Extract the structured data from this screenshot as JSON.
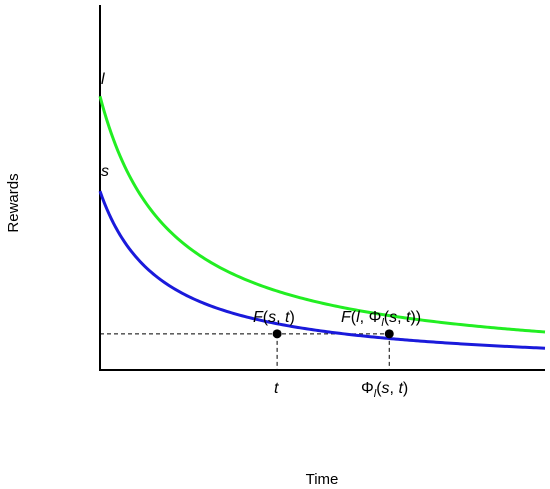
{
  "chart_data": {
    "type": "line",
    "title": "",
    "xlabel": "Time",
    "ylabel": "Rewards",
    "xlim": [
      0,
      10
    ],
    "ylim": [
      0,
      10
    ],
    "grid": false,
    "legend": "none",
    "series": [
      {
        "name": "l",
        "color": "#22ee22",
        "A": 7.5,
        "k": 0.62,
        "T": 10
      },
      {
        "name": "s",
        "color": "#1a1adb",
        "A": 4.9,
        "k": 0.72,
        "T": 10
      }
    ],
    "points": [
      {
        "label": "F(s, t)",
        "series": 1,
        "x": 3.98,
        "y": 0.99
      },
      {
        "label": "F(l, Φ_l(s, t))",
        "series": 0,
        "x": 6.5,
        "y": 0.99
      }
    ],
    "ticks": [
      {
        "label": "t",
        "x": 3.98
      },
      {
        "label": "Φ_l(s, t)",
        "x": 6.5
      }
    ],
    "reference_line_y": 0.99
  },
  "labels": {
    "series_l": "l",
    "series_s": "s",
    "point_fst": "F(s, t)",
    "point_fl": "F(l, Φl(s, t))",
    "tick_t": "t",
    "tick_phi": "Φl(s, t)",
    "xlabel": "Time",
    "ylabel": "Rewards"
  }
}
